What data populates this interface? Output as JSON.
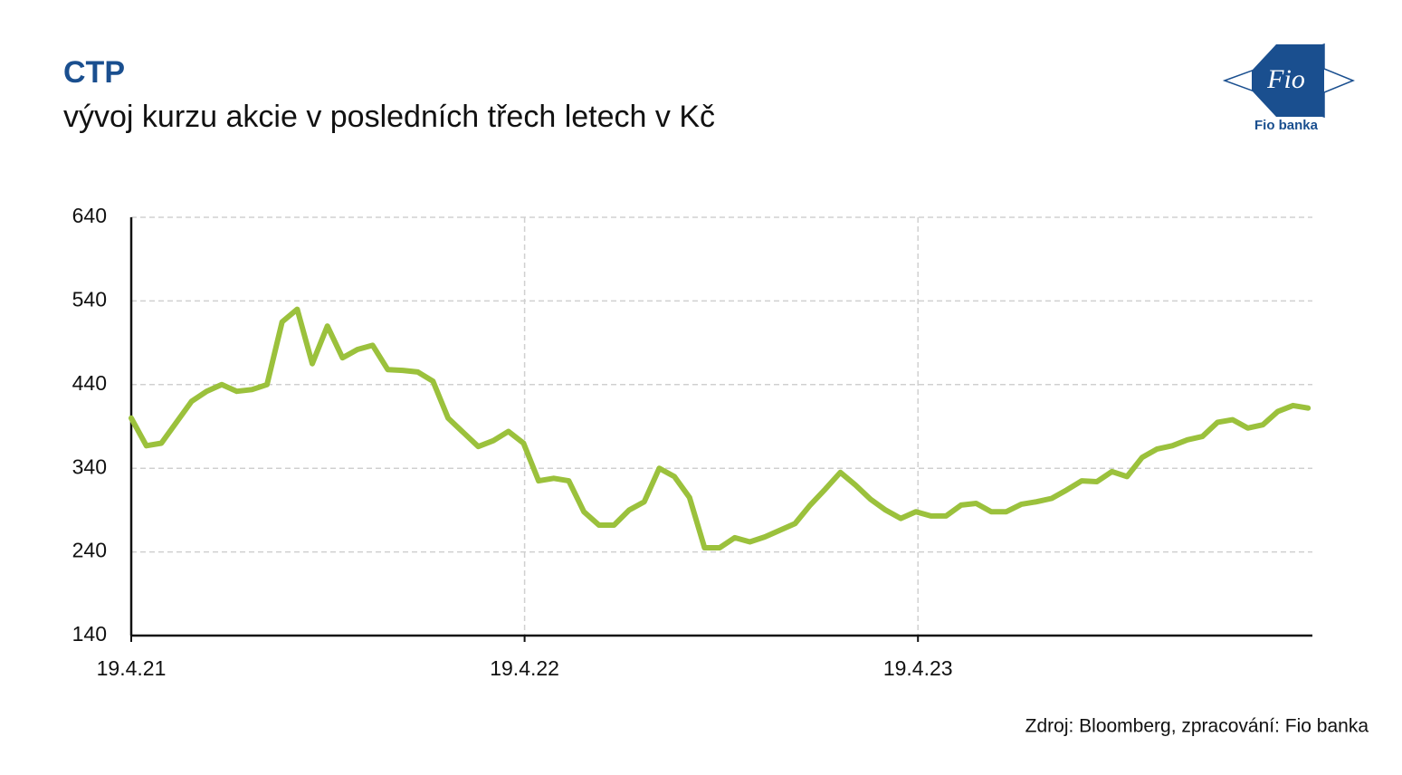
{
  "chart_data": {
    "type": "line",
    "title": "CTP",
    "subtitle": "vývoj kurzu akcie v posledních třech letech v Kč",
    "source": "Zdroj: Bloomberg, zpracování: Fio banka",
    "logo_text": "Fio",
    "logo_caption": "Fio banka",
    "x": [
      "19.4.21",
      "3.5.21",
      "17.5.21",
      "31.5.21",
      "14.6.21",
      "28.6.21",
      "12.7.21",
      "26.7.21",
      "9.8.21",
      "23.8.21",
      "6.9.21",
      "20.9.21",
      "4.10.21",
      "18.10.21",
      "1.11.21",
      "15.11.21",
      "29.11.21",
      "13.12.21",
      "27.12.21",
      "10.1.22",
      "24.1.22",
      "7.2.22",
      "21.2.22",
      "7.3.22",
      "21.3.22",
      "4.4.22",
      "18.4.22",
      "2.5.22",
      "16.5.22",
      "30.5.22",
      "13.6.22",
      "27.6.22",
      "11.7.22",
      "25.7.22",
      "8.8.22",
      "22.8.22",
      "5.9.22",
      "19.9.22",
      "3.10.22",
      "17.10.22",
      "31.10.22",
      "14.11.22",
      "28.11.22",
      "12.12.22",
      "26.12.22",
      "9.1.23",
      "23.1.23",
      "6.2.23",
      "20.2.23",
      "6.3.23",
      "20.3.23",
      "3.4.23",
      "17.4.23",
      "1.5.23",
      "15.5.23",
      "29.5.23",
      "12.6.23",
      "26.6.23",
      "10.7.23",
      "24.7.23",
      "7.8.23",
      "21.8.23",
      "4.9.23",
      "18.9.23",
      "2.10.23",
      "16.10.23",
      "30.10.23",
      "13.11.23",
      "27.11.23",
      "11.12.23",
      "25.12.23",
      "8.1.24",
      "22.1.24",
      "5.2.24",
      "19.2.24",
      "4.3.24",
      "18.3.24",
      "1.4.24",
      "15.4.24"
    ],
    "series": [
      {
        "name": "CTP",
        "color": "#9bc13c",
        "values": [
          400,
          367,
          370,
          395,
          420,
          432,
          440,
          432,
          434,
          440,
          515,
          530,
          465,
          510,
          472,
          482,
          487,
          458,
          457,
          455,
          444,
          400,
          383,
          366,
          373,
          384,
          370,
          325,
          328,
          325,
          288,
          272,
          272,
          290,
          300,
          340,
          330,
          305,
          245,
          245,
          257,
          252,
          258,
          266,
          274,
          296,
          315,
          335,
          320,
          303,
          290,
          280,
          288,
          283,
          283,
          296,
          298,
          288,
          288,
          297,
          300,
          304,
          314,
          325,
          324,
          336,
          330,
          353,
          363,
          367,
          374,
          378,
          395,
          398,
          388,
          392,
          408,
          415,
          412
        ]
      }
    ],
    "xlim": [
      "19.4.21",
      "19.4.24"
    ],
    "xticks": [
      "19.4.21",
      "19.4.22",
      "19.4.23"
    ],
    "ylim": [
      140,
      640
    ],
    "yticks": [
      140,
      240,
      340,
      440,
      540,
      640
    ],
    "grid": true
  }
}
